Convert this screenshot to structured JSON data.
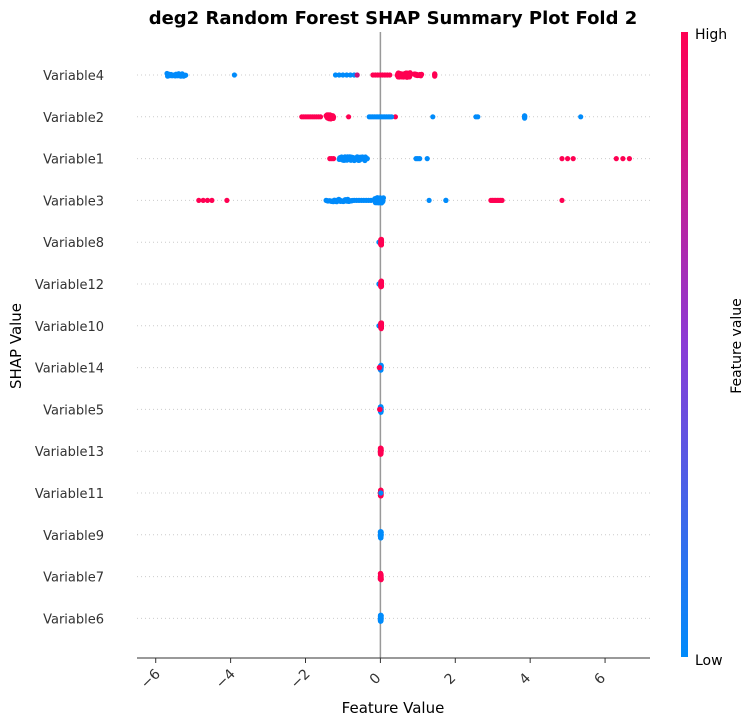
{
  "chart_data": {
    "type": "scatter",
    "title": "deg2 Random Forest SHAP Summary Plot Fold 2",
    "xlabel": "Feature Value",
    "ylabel": "SHAP Value",
    "xlim": [
      -6.5,
      7.2
    ],
    "xticks": [
      "−6",
      "−4",
      "−2",
      "0",
      "2",
      "4",
      "6"
    ],
    "xtick_values": [
      -6,
      -4,
      -2,
      0,
      2,
      4,
      6
    ],
    "colorbar": {
      "label": "Feature value",
      "high": "High",
      "low": "Low",
      "high_color": "#ff0052",
      "low_color": "#008bfb"
    },
    "features": [
      {
        "name": "Variable4",
        "groups": [
          {
            "c": "low",
            "pts": [
              [
                -5.7,
                -5.2,
                28,
                0.07
              ],
              [
                -3.9,
                -3.9,
                1,
                0
              ],
              [
                -1.2,
                -0.7,
                6,
                0
              ]
            ]
          },
          {
            "c": "mid",
            "pts": [
              [
                -0.62,
                -0.62,
                1,
                0
              ]
            ]
          },
          {
            "c": "high",
            "pts": [
              [
                -0.2,
                0.25,
                8,
                0
              ],
              [
                0.45,
                0.8,
                60,
                0.11
              ],
              [
                0.9,
                1.1,
                10,
                0.05
              ],
              [
                1.45,
                1.45,
                4,
                0.07
              ]
            ]
          }
        ]
      },
      {
        "name": "Variable2",
        "groups": [
          {
            "c": "high",
            "pts": [
              [
                -2.1,
                -1.6,
                10,
                0
              ],
              [
                -1.45,
                -1.25,
                30,
                0.1
              ],
              [
                -0.85,
                -0.85,
                1,
                0
              ],
              [
                0.4,
                0.4,
                1,
                0
              ]
            ]
          },
          {
            "c": "low",
            "pts": [
              [
                -0.3,
                0.3,
                14,
                0
              ],
              [
                1.4,
                1.4,
                1,
                0
              ],
              [
                2.55,
                2.6,
                2,
                0
              ],
              [
                3.85,
                3.85,
                6,
                0.07
              ],
              [
                5.35,
                5.35,
                1,
                0
              ]
            ]
          }
        ]
      },
      {
        "name": "Variable1",
        "groups": [
          {
            "c": "high",
            "pts": [
              [
                -1.35,
                -1.25,
                3,
                0
              ],
              [
                4.85,
                5.15,
                3,
                0
              ],
              [
                6.3,
                6.65,
                3,
                0
              ]
            ]
          },
          {
            "c": "low",
            "pts": [
              [
                -1.1,
                -0.4,
                55,
                0.09
              ],
              [
                -0.35,
                -0.3,
                1,
                0
              ],
              [
                0.95,
                1.05,
                3,
                0
              ],
              [
                1.25,
                1.25,
                1,
                0
              ]
            ]
          }
        ]
      },
      {
        "name": "Variable3",
        "groups": [
          {
            "c": "high",
            "pts": [
              [
                -4.85,
                -4.5,
                4,
                0
              ],
              [
                -4.1,
                -4.1,
                1,
                0
              ],
              [
                2.95,
                3.25,
                8,
                0
              ],
              [
                4.85,
                4.85,
                1,
                0
              ]
            ]
          },
          {
            "c": "low",
            "pts": [
              [
                -1.45,
                -0.75,
                30,
                0.06
              ],
              [
                -0.7,
                -0.25,
                8,
                0
              ],
              [
                -0.15,
                0.08,
                40,
                0.13
              ],
              [
                1.3,
                1.3,
                1,
                0
              ],
              [
                1.75,
                1.75,
                2,
                0
              ]
            ]
          }
        ]
      },
      {
        "name": "Variable8",
        "groups": [
          {
            "c": "low",
            "pts": [
              [
                -0.04,
                -0.02,
                3,
                0
              ]
            ]
          },
          {
            "c": "high",
            "pts": [
              [
                0.01,
                0.03,
                40,
                0.14
              ]
            ]
          }
        ]
      },
      {
        "name": "Variable12",
        "groups": [
          {
            "c": "low",
            "pts": [
              [
                -0.04,
                -0.02,
                3,
                0
              ]
            ]
          },
          {
            "c": "high",
            "pts": [
              [
                0.01,
                0.03,
                40,
                0.14
              ]
            ]
          }
        ]
      },
      {
        "name": "Variable10",
        "groups": [
          {
            "c": "low",
            "pts": [
              [
                -0.04,
                -0.02,
                3,
                0
              ]
            ]
          },
          {
            "c": "high",
            "pts": [
              [
                0.01,
                0.03,
                40,
                0.14
              ]
            ]
          }
        ]
      },
      {
        "name": "Variable14",
        "groups": [
          {
            "c": "low",
            "pts": [
              [
                0.0,
                0.02,
                40,
                0.14
              ]
            ]
          },
          {
            "c": "high",
            "pts": [
              [
                -0.03,
                -0.02,
                2,
                0
              ]
            ]
          }
        ]
      },
      {
        "name": "Variable5",
        "groups": [
          {
            "c": "low",
            "pts": [
              [
                0.0,
                0.02,
                40,
                0.14
              ]
            ]
          },
          {
            "c": "high",
            "pts": [
              [
                -0.02,
                -0.01,
                2,
                0
              ]
            ]
          }
        ]
      },
      {
        "name": "Variable13",
        "groups": [
          {
            "c": "high",
            "pts": [
              [
                0.0,
                0.02,
                45,
                0.15
              ]
            ]
          }
        ]
      },
      {
        "name": "Variable11",
        "groups": [
          {
            "c": "high",
            "pts": [
              [
                0.0,
                0.02,
                40,
                0.14
              ]
            ]
          },
          {
            "c": "low",
            "pts": [
              [
                0.01,
                0.01,
                1,
                0
              ]
            ]
          }
        ]
      },
      {
        "name": "Variable9",
        "groups": [
          {
            "c": "low",
            "pts": [
              [
                0.0,
                0.02,
                45,
                0.15
              ]
            ]
          }
        ]
      },
      {
        "name": "Variable7",
        "groups": [
          {
            "c": "high",
            "pts": [
              [
                0.0,
                0.02,
                45,
                0.15
              ]
            ]
          }
        ]
      },
      {
        "name": "Variable6",
        "groups": [
          {
            "c": "low",
            "pts": [
              [
                0.0,
                0.02,
                45,
                0.15
              ]
            ]
          }
        ]
      }
    ]
  }
}
